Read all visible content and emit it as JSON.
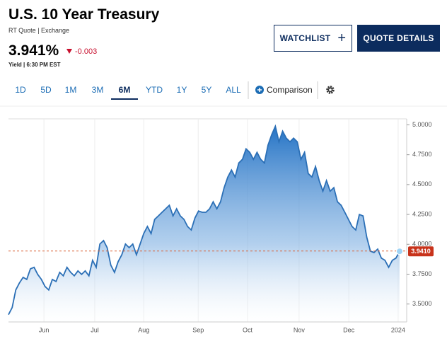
{
  "header": {
    "title": "U.S. 10 Year Treasury",
    "subtitle": "RT Quote | Exchange",
    "price": "3.941%",
    "change": "-0.003",
    "meta": "Yield | 6:30 PM EST"
  },
  "buttons": [
    "WATCHLIST",
    "QUOTE DETAILS"
  ],
  "tabs": [
    "1D",
    "5D",
    "1M",
    "3M",
    "6M",
    "YTD",
    "1Y",
    "5Y",
    "ALL"
  ],
  "active_tab": 4,
  "comparison": "Comparison",
  "chart_data": {
    "type": "area",
    "color": "#2b6fb6",
    "values": [
      3.411,
      3.47,
      3.618,
      3.677,
      3.724,
      3.706,
      3.795,
      3.807,
      3.748,
      3.706,
      3.647,
      3.618,
      3.706,
      3.689,
      3.765,
      3.736,
      3.807,
      3.765,
      3.736,
      3.777,
      3.748,
      3.777,
      3.736,
      3.866,
      3.807,
      4.002,
      4.031,
      3.972,
      3.825,
      3.765,
      3.854,
      3.913,
      4.002,
      3.972,
      4.002,
      3.913,
      4.002,
      4.09,
      4.149,
      4.09,
      4.209,
      4.238,
      4.268,
      4.297,
      4.327,
      4.238,
      4.297,
      4.238,
      4.209,
      4.149,
      4.12,
      4.22,
      4.279,
      4.268,
      4.268,
      4.297,
      4.356,
      4.297,
      4.356,
      4.474,
      4.563,
      4.622,
      4.563,
      4.681,
      4.711,
      4.799,
      4.77,
      4.711,
      4.77,
      4.711,
      4.681,
      4.829,
      4.917,
      4.988,
      4.858,
      4.947,
      4.888,
      4.858,
      4.888,
      4.858,
      4.711,
      4.77,
      4.592,
      4.563,
      4.651,
      4.533,
      4.445,
      4.533,
      4.445,
      4.474,
      4.356,
      4.327,
      4.268,
      4.209,
      4.149,
      4.12,
      4.25,
      4.238,
      4.061,
      3.943,
      3.931,
      3.96,
      3.884,
      3.866,
      3.807,
      3.866,
      3.884,
      3.941
    ],
    "xlim": [
      0,
      107
    ],
    "xticks": [
      {
        "value": 9.7,
        "label": "Jun"
      },
      {
        "value": 23.6,
        "label": "Jul"
      },
      {
        "value": 37.0,
        "label": "Aug"
      },
      {
        "value": 51.9,
        "label": "Sep"
      },
      {
        "value": 65.4,
        "label": "Oct"
      },
      {
        "value": 79.5,
        "label": "Nov"
      },
      {
        "value": 93.1,
        "label": "Dec"
      },
      {
        "value": 106.6,
        "label": "2024"
      }
    ],
    "ylim": [
      3.35,
      5.05
    ],
    "yticks": [
      {
        "value": 3.5,
        "label": "3.5000"
      },
      {
        "value": 3.75,
        "label": "3.7500"
      },
      {
        "value": 4.0,
        "label": "4.0000"
      },
      {
        "value": 4.25,
        "label": "4.2500"
      },
      {
        "value": 4.5,
        "label": "4.5000"
      },
      {
        "value": 4.75,
        "label": "4.7500"
      },
      {
        "value": 5.0,
        "label": "5.0000"
      }
    ],
    "grid": true,
    "reference_line": 3.944,
    "current": {
      "value": 3.941,
      "label": "3.9410"
    }
  }
}
